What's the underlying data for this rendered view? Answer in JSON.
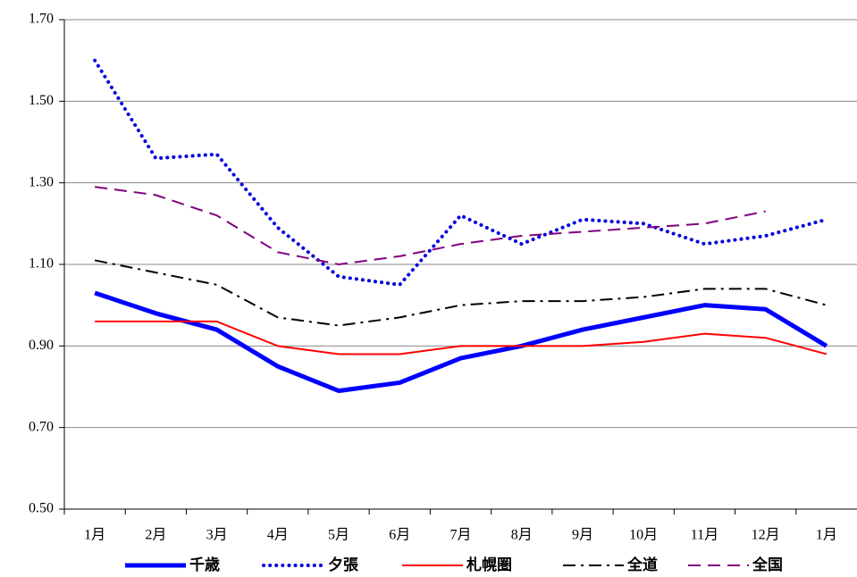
{
  "chart_data": {
    "type": "line",
    "categories": [
      "1月",
      "2月",
      "3月",
      "4月",
      "5月",
      "6月",
      "7月",
      "8月",
      "9月",
      "10月",
      "11月",
      "12月",
      "1月"
    ],
    "ylim": [
      0.5,
      1.7
    ],
    "yticks": [
      {
        "value": 0.5,
        "label": "0.50"
      },
      {
        "value": 0.7,
        "label": "0.70"
      },
      {
        "value": 0.9,
        "label": "0.90"
      },
      {
        "value": 1.1,
        "label": "1.10"
      },
      {
        "value": 1.3,
        "label": "1.30"
      },
      {
        "value": 1.5,
        "label": "1.50"
      },
      {
        "value": 1.7,
        "label": "1.70"
      }
    ],
    "grid": true,
    "legend": "bottom",
    "series": [
      {
        "name": "千歳",
        "color": "#0000ff",
        "style": "thick",
        "values": [
          1.03,
          0.98,
          0.94,
          0.85,
          0.79,
          0.81,
          0.87,
          0.9,
          0.94,
          0.97,
          1.0,
          0.99,
          0.9
        ]
      },
      {
        "name": "夕張",
        "color": "#0000dd",
        "style": "dotted",
        "values": [
          1.6,
          1.36,
          1.37,
          1.19,
          1.07,
          1.05,
          1.22,
          1.15,
          1.21,
          1.2,
          1.15,
          1.17,
          1.21
        ]
      },
      {
        "name": "札幌圏",
        "color": "#ff0000",
        "style": "solid",
        "values": [
          0.96,
          0.96,
          0.96,
          0.9,
          0.88,
          0.88,
          0.9,
          0.9,
          0.9,
          0.91,
          0.93,
          0.92,
          0.88
        ]
      },
      {
        "name": "全道",
        "color": "#000000",
        "style": "dash-dot",
        "values": [
          1.11,
          1.08,
          1.05,
          0.97,
          0.95,
          0.97,
          1.0,
          1.01,
          1.01,
          1.02,
          1.04,
          1.04,
          1.0
        ]
      },
      {
        "name": "全国",
        "color": "#800080",
        "style": "dashed",
        "values": [
          1.29,
          1.27,
          1.22,
          1.13,
          1.1,
          1.12,
          1.15,
          1.17,
          1.18,
          1.19,
          1.2,
          1.23,
          null
        ]
      }
    ]
  }
}
